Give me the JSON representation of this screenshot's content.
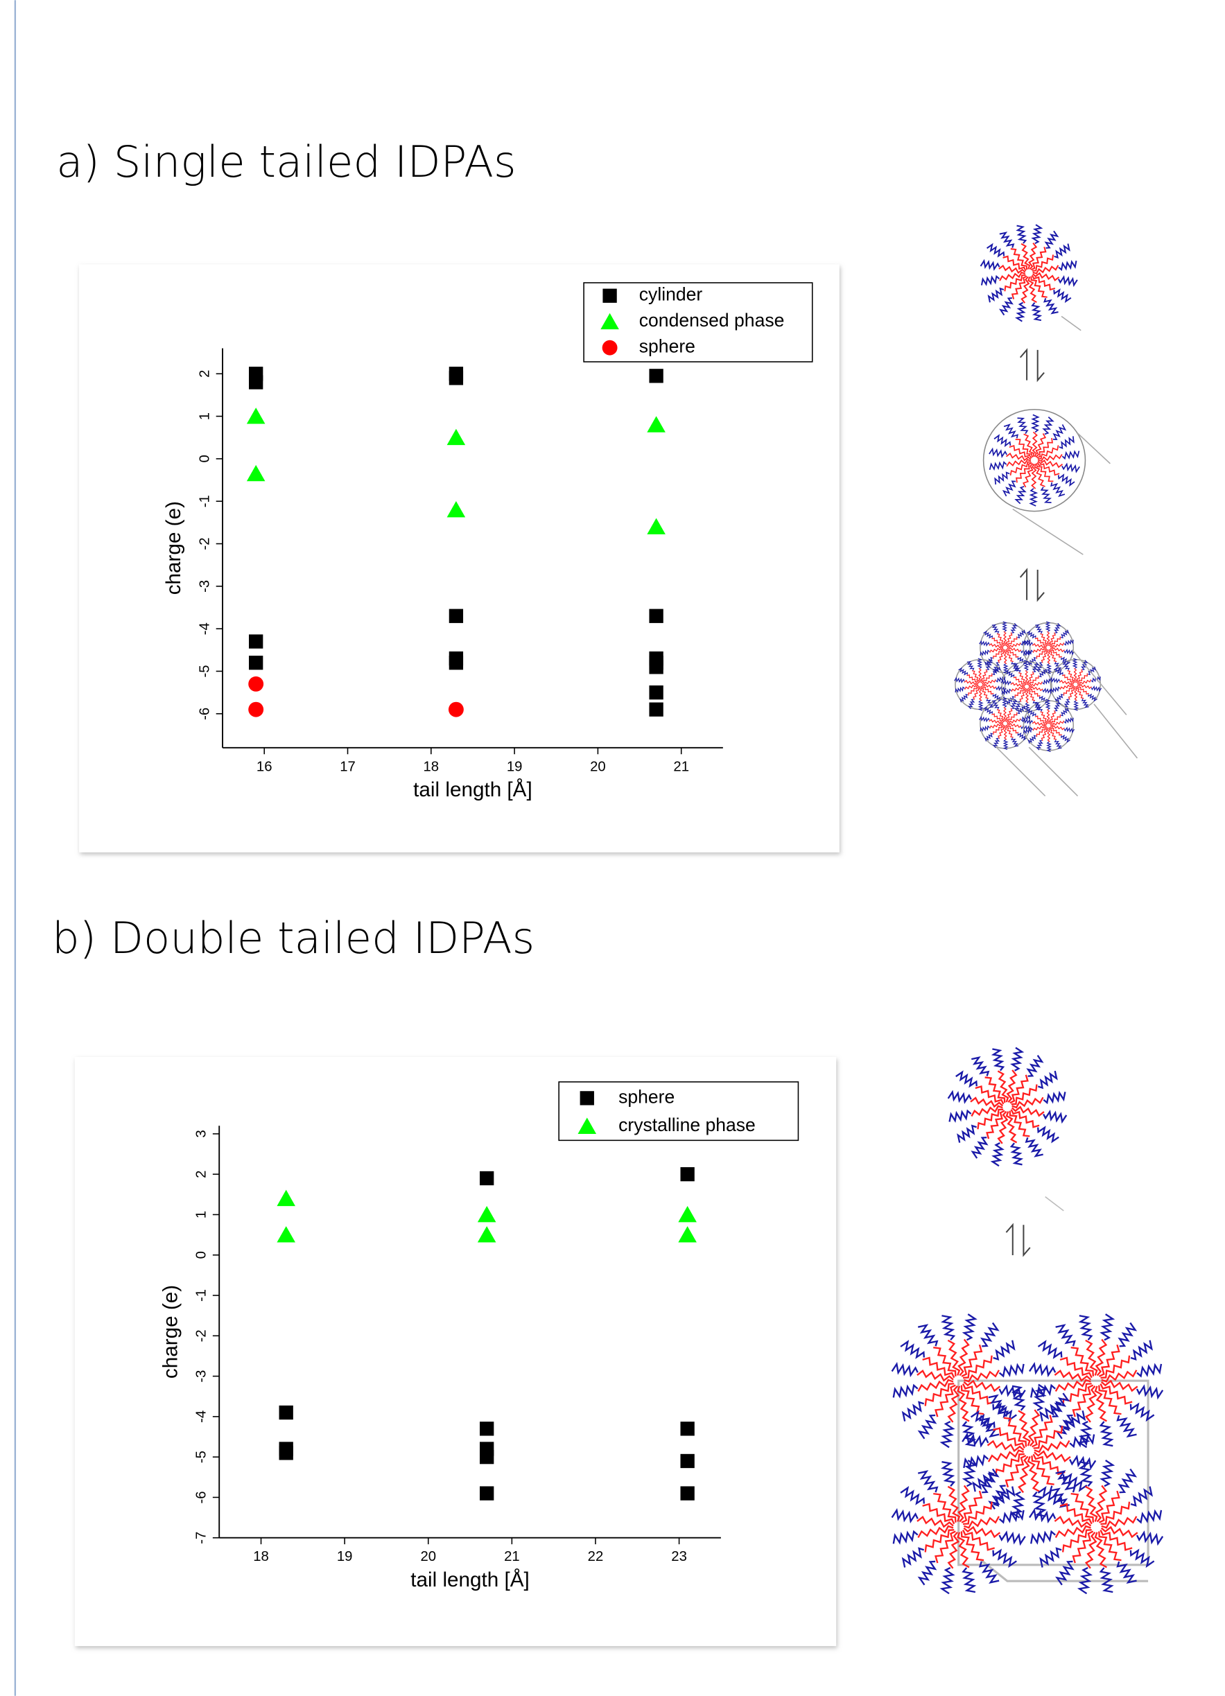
{
  "chart_data": [
    {
      "type": "scatter",
      "title": "a) Single tailed IDPAs",
      "x_label": "tail length [Å]",
      "y_label": "charge (e)",
      "xlim": [
        15.5,
        21.5
      ],
      "ylim": [
        -6.8,
        2.6
      ],
      "xticks": [
        16,
        17,
        18,
        19,
        20,
        21
      ],
      "yticks": [
        -6,
        -5,
        -4,
        -3,
        -2,
        -1,
        0,
        1,
        2
      ],
      "legend": "upper right",
      "series": [
        {
          "name": "cylinder",
          "color": "#000000",
          "marker": "square",
          "x": [
            15.9,
            15.9,
            15.9,
            15.9,
            18.3,
            18.3,
            18.3,
            18.3,
            18.3,
            20.7,
            20.7,
            20.7,
            20.7,
            20.7,
            20.7,
            20.7
          ],
          "values": [
            2,
            1.8,
            -4.3,
            -4.8,
            2,
            1.9,
            -3.7,
            -4.7,
            -4.8,
            1.95,
            -3.7,
            -4.7,
            -4.8,
            -4.9,
            -5.5,
            -5.9
          ]
        },
        {
          "name": "condensed phase",
          "color": "#00ff00",
          "marker": "triangle",
          "x": [
            15.9,
            15.9,
            18.3,
            18.3,
            20.7,
            20.7
          ],
          "values": [
            1.0,
            -0.35,
            0.5,
            -1.2,
            0.8,
            -1.6
          ]
        },
        {
          "name": "sphere",
          "color": "#ff0000",
          "marker": "circle",
          "x": [
            15.9,
            15.9,
            18.3
          ],
          "values": [
            -5.3,
            -5.9,
            -5.9
          ]
        }
      ]
    },
    {
      "type": "scatter",
      "title": "b) Double tailed IDPAs",
      "x_label": "tail length [Å]",
      "y_label": "charge (e)",
      "xlim": [
        17.5,
        23.5
      ],
      "ylim": [
        -7,
        3.2
      ],
      "xticks": [
        18,
        19,
        20,
        21,
        22,
        23
      ],
      "yticks": [
        -7,
        -6,
        -5,
        -4,
        -3,
        -2,
        -1,
        0,
        1,
        2,
        3
      ],
      "legend": "upper right",
      "series": [
        {
          "name": "sphere",
          "color": "#000000",
          "marker": "square",
          "x": [
            18.3,
            18.3,
            18.3,
            20.7,
            20.7,
            20.7,
            20.7,
            20.7,
            23.1,
            23.1,
            23.1,
            23.1
          ],
          "values": [
            -3.9,
            -4.8,
            -4.9,
            1.9,
            -4.3,
            -4.8,
            -5.0,
            -5.9,
            2,
            -4.3,
            -5.1,
            -5.9
          ]
        },
        {
          "name": "crystalline phase",
          "color": "#00ff00",
          "marker": "triangle",
          "x": [
            18.3,
            18.3,
            20.7,
            20.7,
            23.1,
            23.1
          ],
          "values": [
            1.4,
            0.5,
            1.0,
            0.5,
            1.0,
            0.5
          ]
        }
      ]
    }
  ]
}
